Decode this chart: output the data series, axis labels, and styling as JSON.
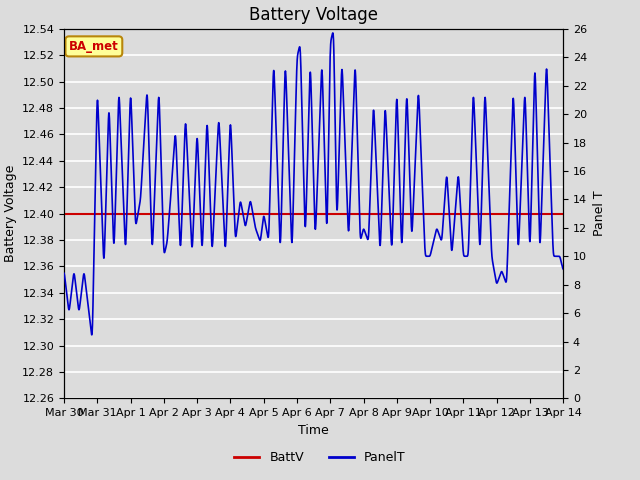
{
  "title": "Battery Voltage",
  "xlabel": "Time",
  "ylabel_left": "Battery Voltage",
  "ylabel_right": "Panel T",
  "ylim_left": [
    12.26,
    12.54
  ],
  "ylim_right": [
    0,
    26
  ],
  "background_color": "#dcdcdc",
  "plot_bg_color": "#dcdcdc",
  "batt_v_value": 12.4,
  "batt_v_color": "#cc0000",
  "panel_t_color": "#0000cc",
  "annotation_text": "BA_met",
  "annotation_bg": "#ffff99",
  "annotation_border": "#b8860b",
  "annotation_text_color": "#cc0000",
  "x_tick_labels": [
    "Mar 30",
    "Mar 31",
    "Apr 1",
    "Apr 2",
    "Apr 3",
    "Apr 4",
    "Apr 5",
    "Apr 6",
    "Apr 7",
    "Apr 8",
    "Apr 9",
    "Apr 10",
    "Apr 11",
    "Apr 12",
    "Apr 13",
    "Apr 14"
  ],
  "x_tick_positions": [
    0,
    1,
    2,
    3,
    4,
    5,
    6,
    7,
    8,
    9,
    10,
    11,
    12,
    13,
    14,
    15
  ],
  "left_yticks": [
    12.26,
    12.28,
    12.3,
    12.32,
    12.34,
    12.36,
    12.38,
    12.4,
    12.42,
    12.44,
    12.46,
    12.48,
    12.5,
    12.52,
    12.54
  ],
  "right_yticks": [
    0,
    2,
    4,
    6,
    8,
    10,
    12,
    14,
    16,
    18,
    20,
    22,
    24,
    26
  ],
  "grid_color": "#ffffff",
  "title_fontsize": 12,
  "axis_label_fontsize": 9,
  "tick_fontsize": 8
}
